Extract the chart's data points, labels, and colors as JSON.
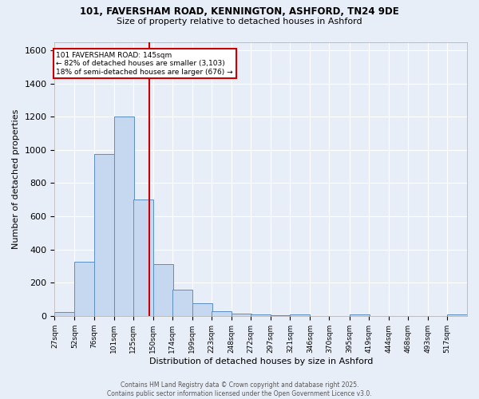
{
  "title1": "101, FAVERSHAM ROAD, KENNINGTON, ASHFORD, TN24 9DE",
  "title2": "Size of property relative to detached houses in Ashford",
  "xlabel": "Distribution of detached houses by size in Ashford",
  "ylabel": "Number of detached properties",
  "bar_labels": [
    "27sqm",
    "52sqm",
    "76sqm",
    "101sqm",
    "125sqm",
    "150sqm",
    "174sqm",
    "199sqm",
    "223sqm",
    "248sqm",
    "272sqm",
    "297sqm",
    "321sqm",
    "346sqm",
    "370sqm",
    "395sqm",
    "419sqm",
    "444sqm",
    "468sqm",
    "493sqm",
    "517sqm"
  ],
  "bar_values": [
    25,
    325,
    975,
    1200,
    700,
    310,
    160,
    75,
    30,
    12,
    8,
    3,
    10,
    1,
    0,
    10,
    0,
    0,
    0,
    0,
    10
  ],
  "bar_color": "#c5d8f0",
  "bar_edge_color": "#5b8ec4",
  "bg_color": "#e8eef8",
  "grid_color": "#ffffff",
  "fig_bg_color": "#e8eef8",
  "annotation_text": "101 FAVERSHAM ROAD: 145sqm\n← 82% of detached houses are smaller (3,103)\n18% of semi-detached houses are larger (676) →",
  "annotation_box_color": "#ffffff",
  "annotation_border_color": "#cc0000",
  "vline_color": "#cc0000",
  "vline_x_index": 4.8,
  "ylim": [
    0,
    1650
  ],
  "yticks": [
    0,
    200,
    400,
    600,
    800,
    1000,
    1200,
    1400,
    1600
  ],
  "footer": "Contains HM Land Registry data © Crown copyright and database right 2025.\nContains public sector information licensed under the Open Government Licence v3.0.",
  "bin_starts": [
    27,
    52,
    76,
    101,
    125,
    150,
    174,
    199,
    223,
    248,
    272,
    297,
    321,
    346,
    370,
    395,
    419,
    444,
    468,
    493,
    517
  ],
  "bin_width": 25
}
